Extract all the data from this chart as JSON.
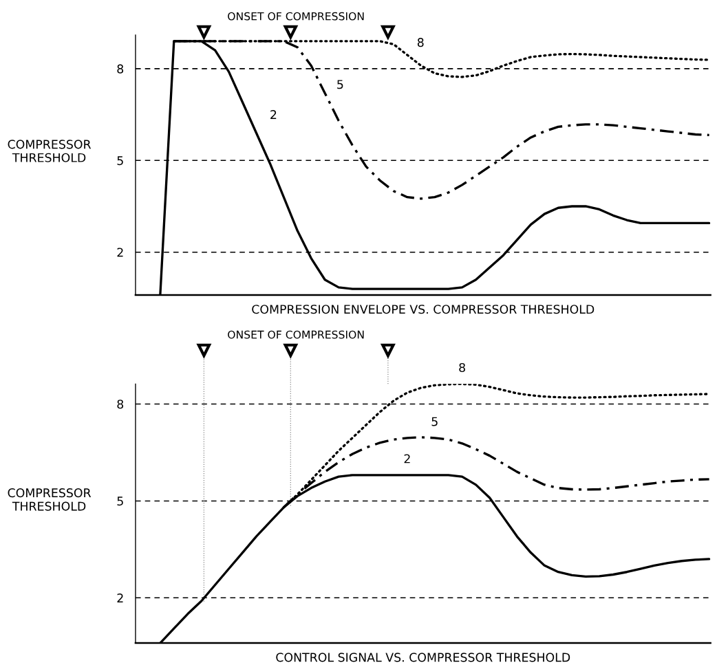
{
  "chart_data": [
    {
      "type": "line",
      "xlabel": "COMPRESSION ENVELOPE VS. COMPRESSOR THRESHOLD",
      "ylabel": "COMPRESSOR\nTHRESHOLD",
      "categories": [
        null,
        null,
        null,
        null,
        null,
        null,
        null,
        null,
        null,
        null,
        null,
        null,
        null,
        null,
        null,
        null,
        null,
        null,
        null,
        null,
        null,
        null,
        null,
        null,
        null,
        null,
        null,
        null,
        null,
        null,
        null,
        null,
        null,
        null,
        null,
        null,
        null,
        null,
        null,
        null,
        null
      ],
      "series": [
        {
          "name": "2",
          "color": "#000000",
          "line_style": "solid",
          "values": [
            0.6,
            8.9,
            8.9,
            8.9,
            8.6,
            7.9,
            6.9,
            5.9,
            4.9,
            3.8,
            2.7,
            1.8,
            1.1,
            0.85,
            0.8,
            0.8,
            0.8,
            0.8,
            0.8,
            0.8,
            0.8,
            0.8,
            0.85,
            1.1,
            1.5,
            1.9,
            2.4,
            2.9,
            3.25,
            3.45,
            3.5,
            3.5,
            3.4,
            3.2,
            3.05,
            2.95,
            2.95,
            2.95,
            2.95,
            2.95,
            2.95
          ]
        },
        {
          "name": "5",
          "color": "#000000",
          "line_style": "dashdot",
          "values": [
            null,
            8.9,
            8.9,
            8.9,
            8.9,
            8.9,
            8.9,
            8.9,
            8.9,
            8.9,
            8.7,
            8.1,
            7.2,
            6.3,
            5.5,
            4.8,
            4.35,
            4.0,
            3.8,
            3.75,
            3.8,
            3.95,
            4.2,
            4.5,
            4.8,
            5.1,
            5.45,
            5.75,
            5.95,
            6.1,
            6.15,
            6.18,
            6.18,
            6.15,
            6.1,
            6.05,
            6.0,
            5.95,
            5.9,
            5.85,
            5.83
          ]
        },
        {
          "name": "8",
          "color": "#000000",
          "line_style": "dotted",
          "values": [
            null,
            8.9,
            8.9,
            8.9,
            8.9,
            8.9,
            8.9,
            8.9,
            8.9,
            8.9,
            8.9,
            8.9,
            8.9,
            8.9,
            8.9,
            8.9,
            8.9,
            8.8,
            8.45,
            8.1,
            7.85,
            7.75,
            7.73,
            7.78,
            7.92,
            8.1,
            8.25,
            8.38,
            8.43,
            8.47,
            8.48,
            8.47,
            8.45,
            8.42,
            8.4,
            8.38,
            8.36,
            8.34,
            8.32,
            8.3,
            8.29
          ]
        }
      ],
      "ylim": [
        0.6,
        9.1
      ],
      "yticks": [
        2,
        5,
        8
      ],
      "grid": "y",
      "tick_labels": "y",
      "annotations": [
        "ONSET OF COMPRESSION"
      ]
    },
    {
      "type": "line",
      "xlabel": "CONTROL SIGNAL VS. COMPRESSOR THRESHOLD",
      "ylabel": "COMPRESSOR\nTHRESHOLD",
      "categories": [
        null,
        null,
        null,
        null,
        null,
        null,
        null,
        null,
        null,
        null,
        null,
        null,
        null,
        null,
        null,
        null,
        null,
        null,
        null,
        null,
        null,
        null,
        null,
        null,
        null,
        null,
        null,
        null,
        null,
        null,
        null,
        null,
        null,
        null,
        null,
        null,
        null,
        null,
        null,
        null,
        null
      ],
      "series": [
        {
          "name": "2",
          "color": "#000000",
          "line_style": "solid",
          "values": [
            0.6,
            1.05,
            1.5,
            1.9,
            2.4,
            2.9,
            3.4,
            3.9,
            4.35,
            4.8,
            5.15,
            5.4,
            5.6,
            5.75,
            5.8,
            5.8,
            5.8,
            5.8,
            5.8,
            5.8,
            5.8,
            5.8,
            5.75,
            5.5,
            5.1,
            4.5,
            3.9,
            3.4,
            3.0,
            2.8,
            2.7,
            2.66,
            2.67,
            2.72,
            2.8,
            2.9,
            3.0,
            3.08,
            3.14,
            3.18,
            3.2
          ]
        },
        {
          "name": "5",
          "color": "#000000",
          "line_style": "dashdot",
          "values": [
            null,
            null,
            null,
            null,
            null,
            null,
            null,
            null,
            null,
            4.8,
            5.2,
            5.55,
            5.9,
            6.2,
            6.45,
            6.65,
            6.8,
            6.9,
            6.95,
            6.97,
            6.95,
            6.9,
            6.78,
            6.6,
            6.4,
            6.15,
            5.9,
            5.7,
            5.5,
            5.4,
            5.36,
            5.35,
            5.36,
            5.4,
            5.45,
            5.5,
            5.55,
            5.6,
            5.63,
            5.66,
            5.67
          ]
        },
        {
          "name": "8",
          "color": "#000000",
          "line_style": "dotted",
          "values": [
            null,
            null,
            null,
            null,
            null,
            null,
            null,
            null,
            null,
            4.8,
            5.2,
            5.65,
            6.1,
            6.55,
            6.95,
            7.35,
            7.75,
            8.1,
            8.35,
            8.5,
            8.58,
            8.61,
            8.62,
            8.6,
            8.53,
            8.43,
            8.33,
            8.27,
            8.23,
            8.21,
            8.2,
            8.2,
            8.21,
            8.22,
            8.24,
            8.25,
            8.27,
            8.28,
            8.29,
            8.3,
            8.31
          ]
        }
      ],
      "ylim": [
        0.6,
        8.62
      ],
      "yticks": [
        2,
        5,
        8
      ],
      "grid": "y",
      "tick_labels": "y",
      "annotations": [
        "ONSET OF COMPRESSION"
      ]
    }
  ]
}
